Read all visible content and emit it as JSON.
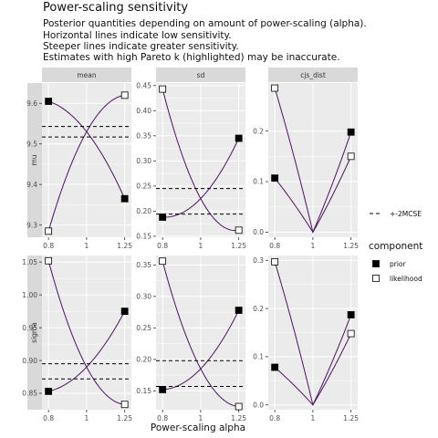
{
  "title": "Power-scaling sensitivity",
  "subtitle_lines": [
    "Posterior quantities depending on amount of power-scaling (alpha).",
    "Horizontal lines indicate low sensitivity.",
    "Steeper lines indicate greater sensitivity.",
    "Estimates with high Pareto k (highlighted) may be inaccurate."
  ],
  "colors": {
    "curve": "#4b145e",
    "panel_bg": "#ebebeb",
    "strip_bg": "#d9d9d9",
    "grid": "#ffffff"
  },
  "chart_data": {
    "type": "line",
    "xlabel": "Power-scaling alpha",
    "x_scale": "log",
    "x_ticks": [
      "0.8",
      "1",
      "1.25"
    ],
    "columns": [
      "mean",
      "sd",
      "cjs_dist"
    ],
    "rows": [
      "mu",
      "sigma"
    ],
    "legend": {
      "position": "right",
      "line_label": "+-2MCSE",
      "title": "component",
      "entries": [
        {
          "label": "prior",
          "shape": "filled-square"
        },
        {
          "label": "likelihood",
          "shape": "open-square"
        }
      ]
    },
    "panels": [
      {
        "row": "mu",
        "col": "mean",
        "ylim": [
          9.27,
          9.65
        ],
        "y_ticks": [
          "9.3",
          "9.4",
          "9.5",
          "9.6"
        ],
        "mcse": [
          9.517,
          9.543
        ],
        "prior": {
          "x": [
            0.8,
            1,
            1.25
          ],
          "y": [
            9.605,
            9.53,
            9.365
          ]
        },
        "likelihood": {
          "x": [
            0.8,
            1,
            1.25
          ],
          "y": [
            9.285,
            9.53,
            9.62
          ]
        }
      },
      {
        "row": "mu",
        "col": "sd",
        "ylim": [
          0.148,
          0.455
        ],
        "y_ticks": [
          "0.15",
          "0.20",
          "0.25",
          "0.30",
          "0.35",
          "0.40",
          "0.45"
        ],
        "mcse": [
          0.194,
          0.245
        ],
        "prior": {
          "x": [
            0.8,
            1,
            1.25
          ],
          "y": [
            0.188,
            0.225,
            0.345
          ]
        },
        "likelihood": {
          "x": [
            0.8,
            1,
            1.25
          ],
          "y": [
            0.443,
            0.225,
            0.162
          ]
        }
      },
      {
        "row": "mu",
        "col": "cjs_dist",
        "ylim": [
          -0.01,
          0.295
        ],
        "y_ticks": [
          "0.0",
          "0.1",
          "0.2"
        ],
        "prior": {
          "x": [
            0.8,
            1,
            1.25
          ],
          "y": [
            0.107,
            0,
            0.198
          ]
        },
        "likelihood": {
          "x": [
            0.8,
            1,
            1.25
          ],
          "y": [
            0.285,
            0,
            0.15
          ]
        }
      },
      {
        "row": "sigma",
        "col": "mean",
        "ylim": [
          0.825,
          1.06
        ],
        "y_ticks": [
          "0.85",
          "0.90",
          "0.95",
          "1.00",
          "1.05"
        ],
        "mcse": [
          0.872,
          0.895
        ],
        "prior": {
          "x": [
            0.8,
            1,
            1.25
          ],
          "y": [
            0.853,
            0.89,
            0.975
          ]
        },
        "likelihood": {
          "x": [
            0.8,
            1,
            1.25
          ],
          "y": [
            1.052,
            0.89,
            0.833
          ]
        }
      },
      {
        "row": "sigma",
        "col": "sd",
        "ylim": [
          0.12,
          0.365
        ],
        "y_ticks": [
          "0.15",
          "0.20",
          "0.25",
          "0.30",
          "0.35"
        ],
        "mcse": [
          0.157,
          0.198
        ],
        "prior": {
          "x": [
            0.8,
            1,
            1.25
          ],
          "y": [
            0.152,
            0.185,
            0.278
          ]
        },
        "likelihood": {
          "x": [
            0.8,
            1,
            1.25
          ],
          "y": [
            0.356,
            0.185,
            0.125
          ]
        }
      },
      {
        "row": "sigma",
        "col": "cjs_dist",
        "ylim": [
          -0.01,
          0.31
        ],
        "y_ticks": [
          "0.0",
          "0.1",
          "0.2",
          "0.3"
        ],
        "prior": {
          "x": [
            0.8,
            1,
            1.25
          ],
          "y": [
            0.078,
            0,
            0.187
          ]
        },
        "likelihood": {
          "x": [
            0.8,
            1,
            1.25
          ],
          "y": [
            0.297,
            0,
            0.148
          ]
        }
      }
    ]
  }
}
